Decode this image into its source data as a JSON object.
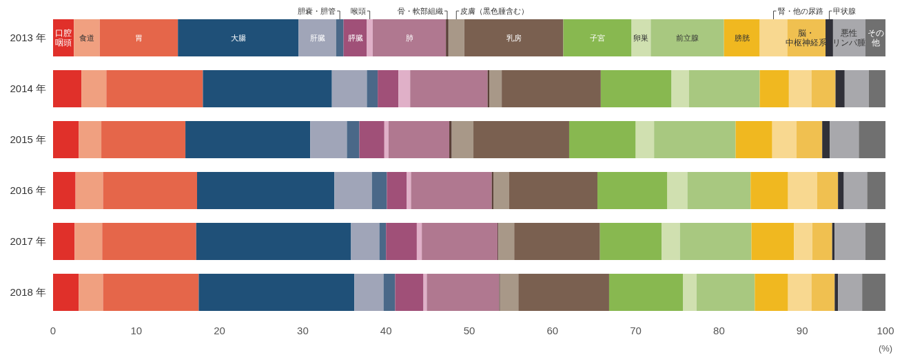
{
  "chart_data": {
    "type": "bar",
    "orientation": "horizontal",
    "stacked": true,
    "categories": [
      "2013 年",
      "2014 年",
      "2015 年",
      "2016 年",
      "2017 年",
      "2018 年"
    ],
    "xlim": [
      0,
      100
    ],
    "xticks": [
      0,
      10,
      20,
      30,
      40,
      50,
      60,
      70,
      80,
      90,
      100
    ],
    "xlabel": "(%)",
    "series": [
      {
        "name": "口腔咽頭",
        "color": "#e0302a",
        "values": [
          2.5,
          3.4,
          3.1,
          2.7,
          2.6,
          3.1
        ]
      },
      {
        "name": "食道",
        "color": "#f0a080",
        "values": [
          3.1,
          3.0,
          2.7,
          3.3,
          3.3,
          2.9
        ]
      },
      {
        "name": "胃",
        "color": "#e5664a",
        "values": [
          9.4,
          11.6,
          10.1,
          11.3,
          11.3,
          11.5
        ]
      },
      {
        "name": "大腸",
        "color": "#1f5078",
        "values": [
          14.5,
          15.5,
          15.0,
          16.5,
          18.6,
          18.7
        ]
      },
      {
        "name": "肝臓",
        "color": "#a0a5b8",
        "values": [
          4.5,
          4.2,
          4.4,
          4.5,
          3.4,
          3.5
        ]
      },
      {
        "name": "胆嚢・胆管",
        "color": "#4a6888",
        "values": [
          0.9,
          1.3,
          1.5,
          1.8,
          0.8,
          1.4
        ]
      },
      {
        "name": "膵臓",
        "color": "#a05078",
        "values": [
          2.8,
          2.5,
          3.0,
          2.4,
          3.7,
          3.4
        ]
      },
      {
        "name": "喉頭",
        "color": "#e0b0c8",
        "values": [
          0.7,
          1.4,
          0.5,
          0.5,
          0.6,
          0.4
        ]
      },
      {
        "name": "肺",
        "color": "#b07890",
        "values": [
          8.8,
          9.3,
          7.3,
          9.7,
          9.1,
          8.7
        ]
      },
      {
        "name": "骨・軟部組織",
        "color": "#5a4038",
        "values": [
          0.3,
          0.2,
          0.3,
          0.2,
          0.1,
          0.1
        ]
      },
      {
        "name": "皮膚（黒色腫含む）",
        "color": "#a89888",
        "values": [
          1.9,
          1.5,
          2.6,
          1.9,
          1.9,
          2.2
        ]
      },
      {
        "name": "乳房",
        "color": "#7a6050",
        "values": [
          11.9,
          11.9,
          11.5,
          10.6,
          10.3,
          10.9
        ]
      },
      {
        "name": "子宮",
        "color": "#88b850",
        "values": [
          8.2,
          8.5,
          8.0,
          8.4,
          7.4,
          8.9
        ]
      },
      {
        "name": "卵巣",
        "color": "#d0e0b0",
        "values": [
          2.3,
          2.1,
          2.2,
          2.4,
          2.2,
          1.6
        ]
      },
      {
        "name": "前立腺",
        "color": "#a8c880",
        "values": [
          8.8,
          8.5,
          9.8,
          7.6,
          8.6,
          7.0
        ]
      },
      {
        "name": "膀胱",
        "color": "#f0b820",
        "values": [
          4.3,
          3.5,
          4.4,
          4.5,
          5.1,
          4.0
        ]
      },
      {
        "name": "腎・他の尿路",
        "color": "#f8d890",
        "values": [
          3.3,
          2.7,
          2.9,
          3.5,
          2.2,
          2.8
        ]
      },
      {
        "name": "脳・中枢神経系",
        "color": "#f0c050",
        "values": [
          4.6,
          2.9,
          3.1,
          2.5,
          2.4,
          2.8
        ]
      },
      {
        "name": "甲状腺",
        "color": "#303038",
        "values": [
          0.9,
          1.1,
          0.9,
          0.7,
          0.3,
          0.4
        ]
      },
      {
        "name": "悪性リンパ腫",
        "color": "#a8a8ac",
        "values": [
          3.9,
          2.9,
          3.5,
          2.8,
          3.7,
          2.9
        ]
      },
      {
        "name": "その他",
        "color": "#707070",
        "values": [
          2.4,
          2.0,
          3.2,
          2.2,
          2.4,
          2.8
        ]
      }
    ]
  }
}
